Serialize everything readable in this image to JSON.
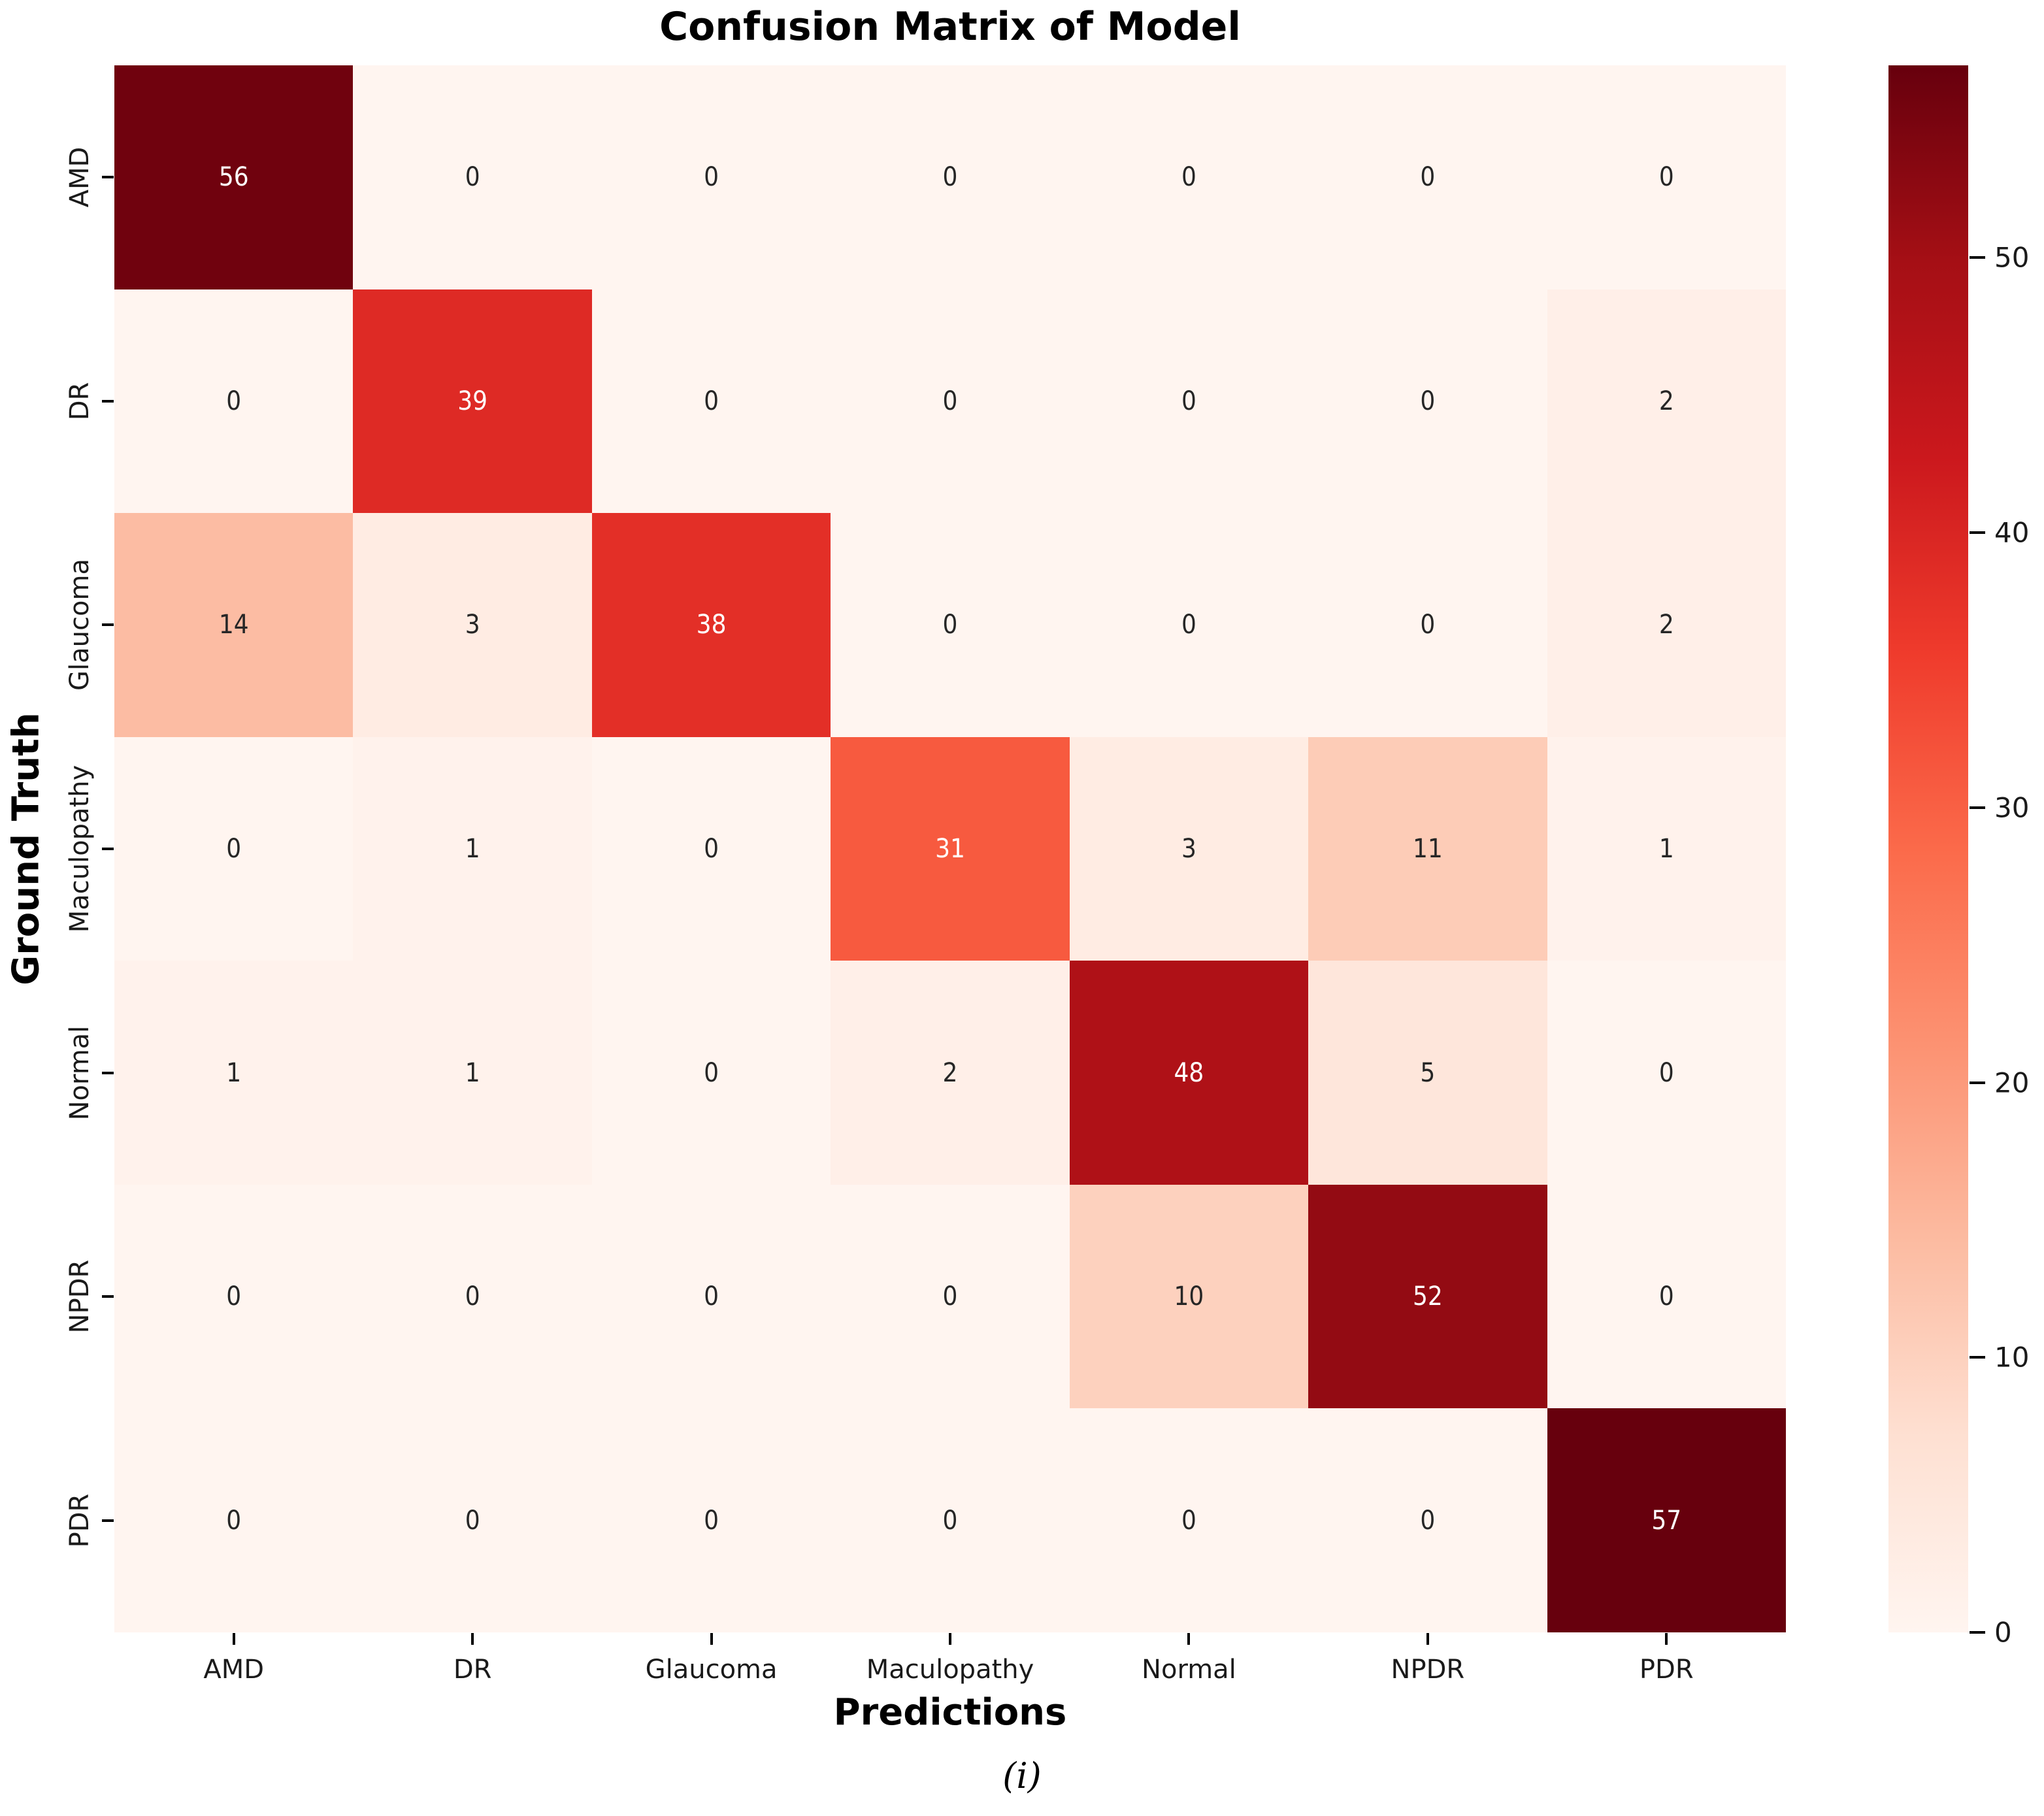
{
  "chart_data": {
    "type": "heatmap",
    "title": "Confusion Matrix of Model",
    "xlabel": "Predictions",
    "ylabel": "Ground Truth",
    "categories": [
      "AMD",
      "DR",
      "Glaucoma",
      "Maculopathy",
      "Normal",
      "NPDR",
      "PDR"
    ],
    "matrix": [
      [
        56,
        0,
        0,
        0,
        0,
        0,
        0
      ],
      [
        0,
        39,
        0,
        0,
        0,
        0,
        2
      ],
      [
        14,
        3,
        38,
        0,
        0,
        0,
        2
      ],
      [
        0,
        1,
        0,
        31,
        3,
        11,
        1
      ],
      [
        1,
        1,
        0,
        2,
        48,
        5,
        0
      ],
      [
        0,
        0,
        0,
        0,
        10,
        52,
        0
      ],
      [
        0,
        0,
        0,
        0,
        0,
        0,
        57
      ]
    ],
    "vmin": 0,
    "vmax": 57,
    "colormap_name": "Reds",
    "colormap_anchors": [
      "#fff5f0",
      "#fee0d2",
      "#fcbba1",
      "#fc9272",
      "#fb6a4a",
      "#ef3b2c",
      "#cb181d",
      "#a50f15",
      "#67000d"
    ],
    "colorbar_ticks": [
      0,
      10,
      20,
      30,
      40,
      50
    ],
    "legend_position": "right-colorbar",
    "grid": false,
    "annotation_dark_text_color": "#262626",
    "annotation_light_text_color": "#ffffff"
  },
  "caption": "(i)"
}
